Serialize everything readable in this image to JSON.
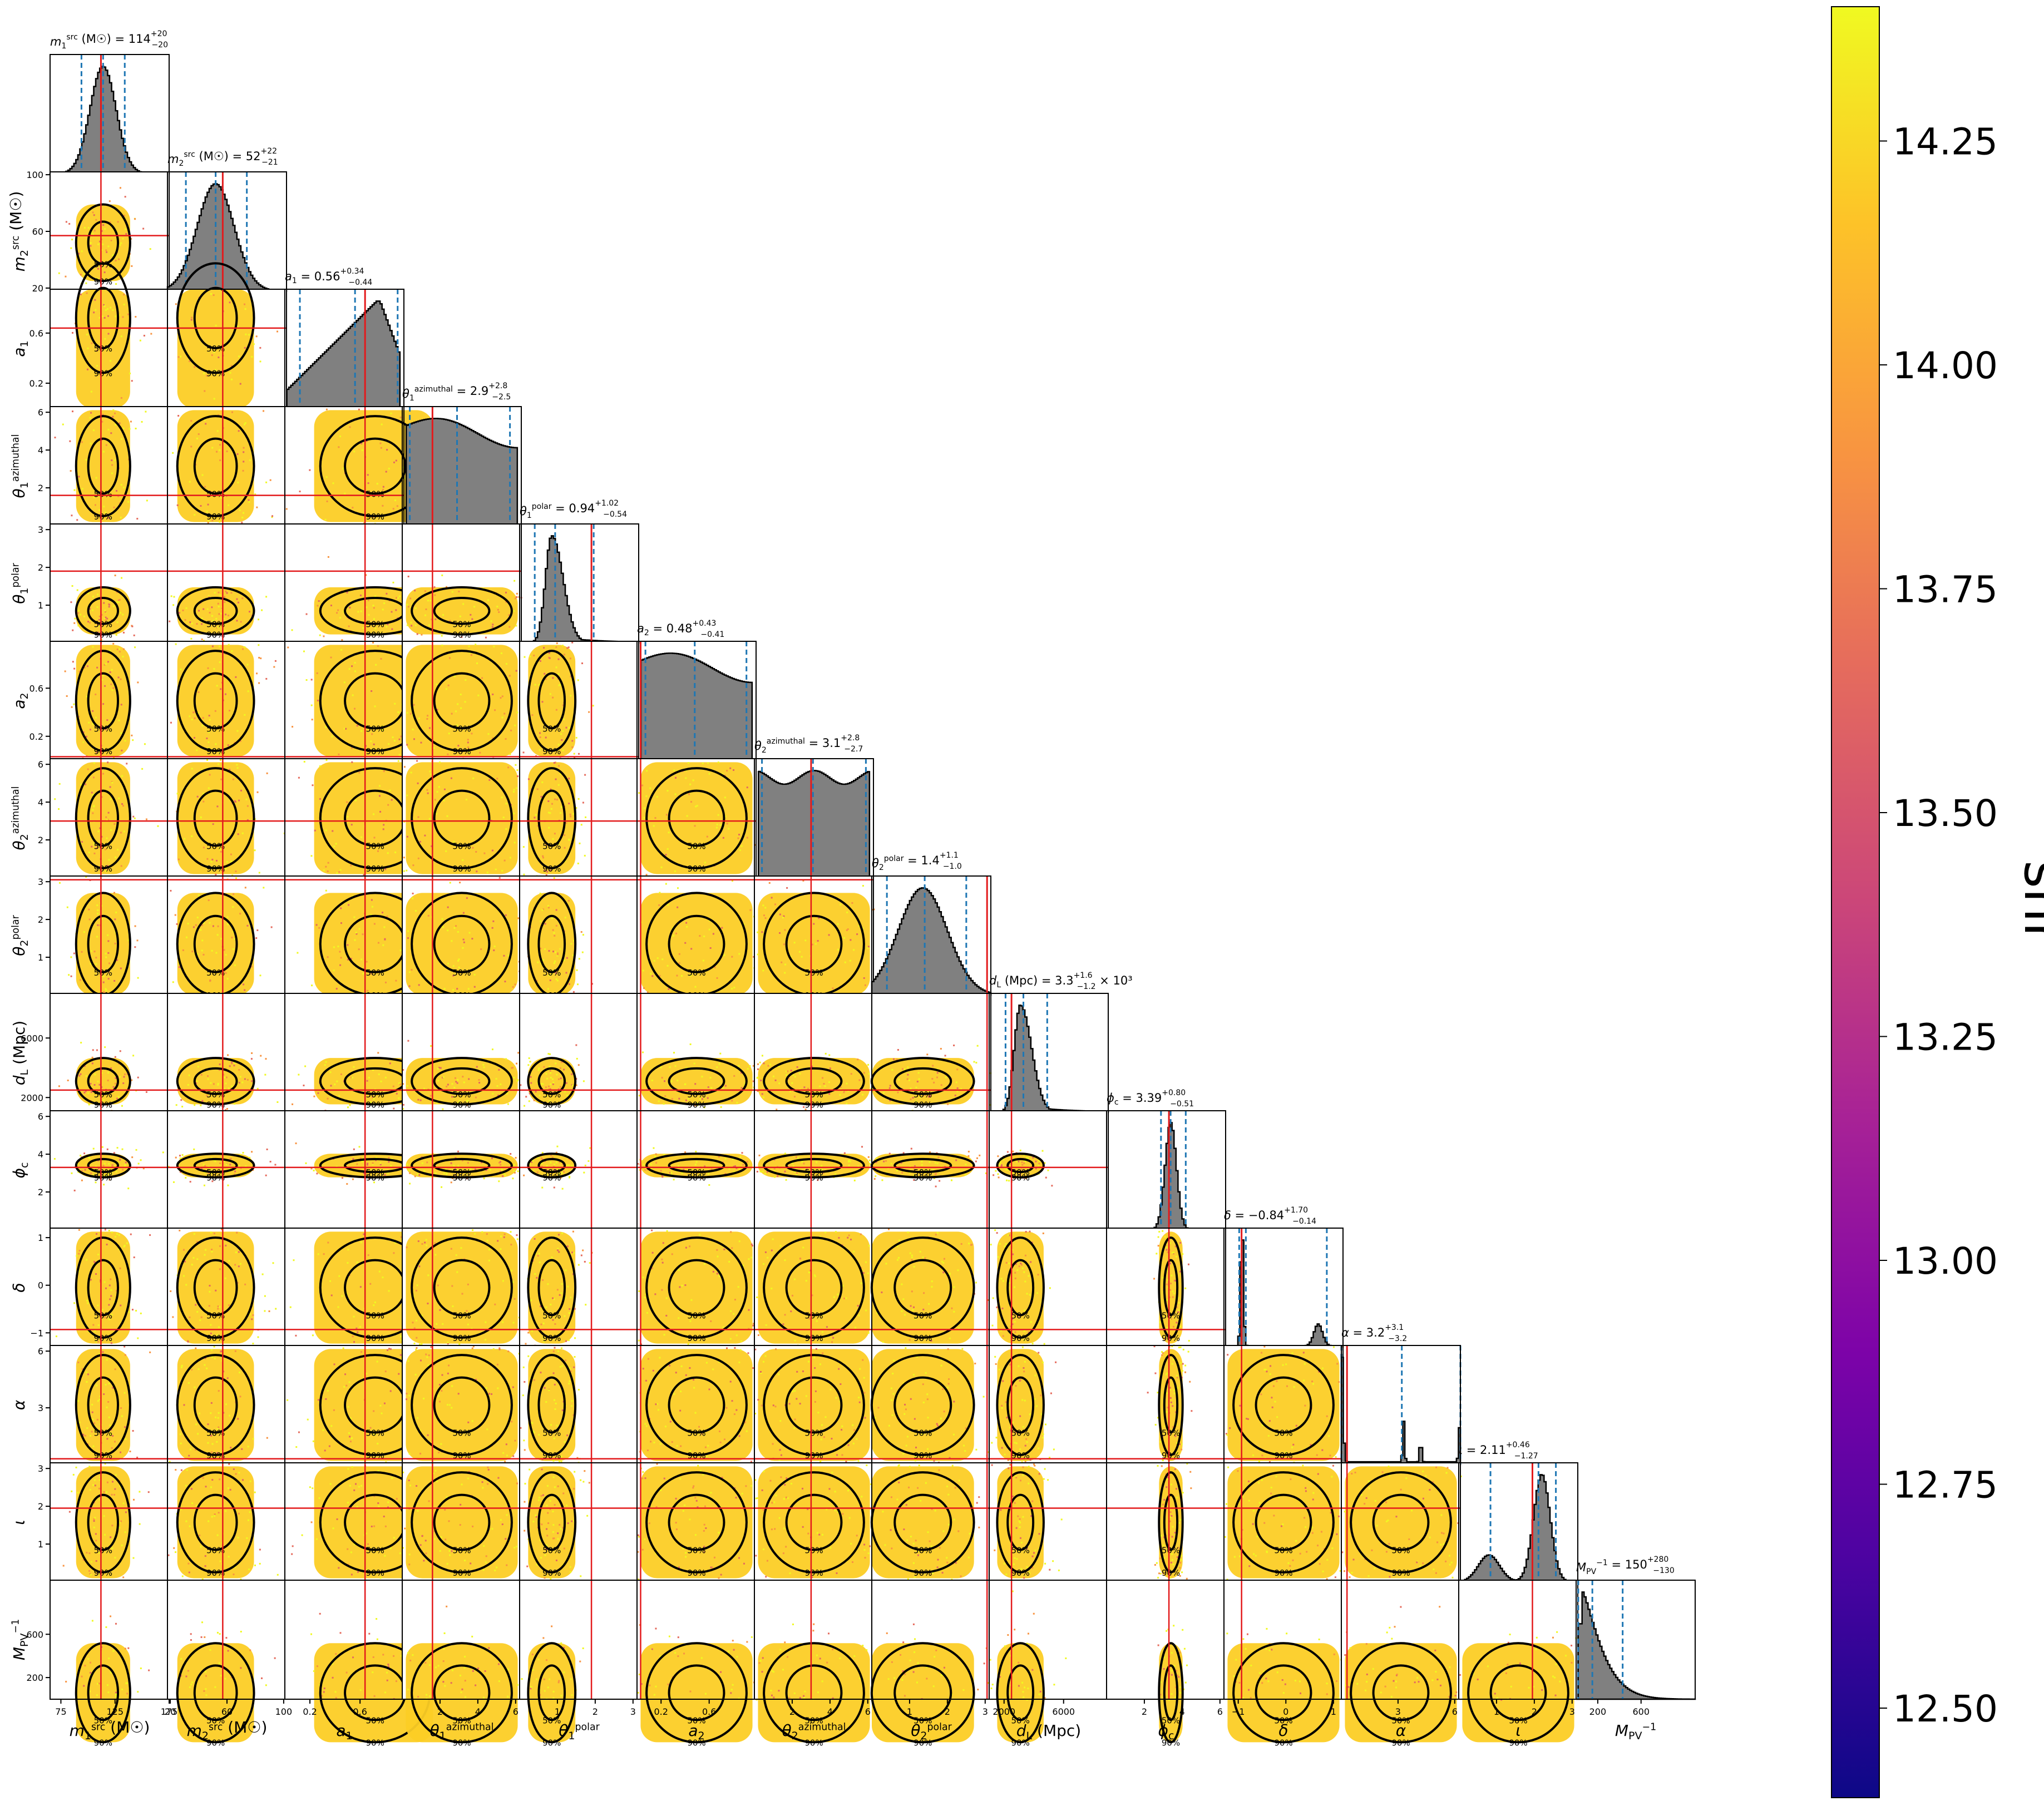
{
  "chart_data": {
    "type": "corner",
    "grid": false,
    "colorbar": {
      "label": "snr",
      "colormap": "plasma",
      "range": [
        12.4,
        14.4
      ],
      "ticks": [
        "12.50",
        "12.75",
        "13.00",
        "13.25",
        "13.50",
        "13.75",
        "14.00",
        "14.25"
      ],
      "tick_values": [
        12.5,
        12.75,
        13.0,
        13.25,
        13.5,
        13.75,
        14.0,
        14.25
      ]
    },
    "contour_levels": [
      "50%",
      "90%"
    ],
    "parameters": [
      {
        "key": "m1",
        "label_base": "m",
        "label_sub": "1",
        "label_sup": "src",
        "label_unit": " (M☉)",
        "title_main": "m",
        "title_sub": "1",
        "title_sup": "src",
        "title_rest": " (M☉) = 114",
        "title_plus": "+20",
        "title_minus": "−20",
        "title_suffix": "",
        "range": [
          65,
          175
        ],
        "ticks": [
          "75",
          "125",
          "175"
        ],
        "tick_values": [
          75,
          125,
          175
        ],
        "median": 114,
        "lower": 94,
        "upper": 134,
        "injection": 112,
        "posterior": {
          "shape": "gauss",
          "mu": 114,
          "sigma": 12
        }
      },
      {
        "key": "m2",
        "label_base": "m",
        "label_sub": "2",
        "label_sup": "src",
        "label_unit": " (M☉)",
        "title_main": "m",
        "title_sub": "2",
        "title_sup": "src",
        "title_rest": " (M☉) = 52",
        "title_plus": "+22",
        "title_minus": "−21",
        "title_suffix": "",
        "range": [
          18,
          102
        ],
        "ticks": [
          "20",
          "60",
          "100"
        ],
        "tick_values": [
          20,
          60,
          100
        ],
        "median": 52,
        "lower": 31,
        "upper": 74,
        "injection": 57,
        "posterior": {
          "shape": "gauss",
          "mu": 52,
          "sigma": 13
        }
      },
      {
        "key": "a1",
        "label_base": "a",
        "label_sub": "1",
        "label_sup": "",
        "label_unit": "",
        "title_main": "a",
        "title_sub": "1",
        "title_sup": "",
        "title_rest": " = 0.56",
        "title_plus": "+0.34",
        "title_minus": "−0.44",
        "title_suffix": "",
        "range": [
          0,
          0.95
        ],
        "ticks": [
          "0.2",
          "0.6"
        ],
        "tick_values": [
          0.2,
          0.6
        ],
        "median": 0.56,
        "lower": 0.12,
        "upper": 0.9,
        "injection": 0.64,
        "posterior": {
          "shape": "ramp",
          "mu": 0.72,
          "sigma": 0.25
        }
      },
      {
        "key": "t1az",
        "label_base": "θ",
        "label_sub": "1",
        "label_sup": "azimuthal",
        "label_unit": "",
        "title_main": "θ",
        "title_sub": "1",
        "title_sup": "azimuthal",
        "title_rest": " = 2.9",
        "title_plus": "+2.8",
        "title_minus": "−2.5",
        "title_suffix": "",
        "range": [
          0,
          6.3
        ],
        "ticks": [
          "2",
          "4",
          "6"
        ],
        "tick_values": [
          2,
          4,
          6
        ],
        "median": 2.9,
        "lower": 0.4,
        "upper": 5.7,
        "injection": 1.6,
        "posterior": {
          "shape": "flat"
        }
      },
      {
        "key": "t1po",
        "label_base": "θ",
        "label_sub": "1",
        "label_sup": "polar",
        "label_unit": "",
        "title_main": "θ",
        "title_sub": "1",
        "title_sup": "polar",
        "title_rest": " = 0.94",
        "title_plus": "+1.02",
        "title_minus": "−0.54",
        "title_suffix": "",
        "range": [
          0,
          3.15
        ],
        "ticks": [
          "1",
          "2",
          "3"
        ],
        "tick_values": [
          1,
          2,
          3
        ],
        "median": 0.94,
        "lower": 0.4,
        "upper": 1.96,
        "injection": 1.9,
        "posterior": {
          "shape": "skew",
          "mu": 0.85,
          "sigma": 0.3
        }
      },
      {
        "key": "a2",
        "label_base": "a",
        "label_sub": "2",
        "label_sup": "",
        "label_unit": "",
        "title_main": "a",
        "title_sub": "2",
        "title_sup": "",
        "title_rest": " = 0.48",
        "title_plus": "+0.43",
        "title_minus": "−0.41",
        "title_suffix": "",
        "range": [
          0,
          0.99
        ],
        "ticks": [
          "0.2",
          "0.6"
        ],
        "tick_values": [
          0.2,
          0.6
        ],
        "median": 0.48,
        "lower": 0.07,
        "upper": 0.91,
        "injection": 0.03,
        "posterior": {
          "shape": "flat"
        }
      },
      {
        "key": "t2az",
        "label_base": "θ",
        "label_sub": "2",
        "label_sup": "azimuthal",
        "label_unit": "",
        "title_main": "θ",
        "title_sub": "2",
        "title_sup": "azimuthal",
        "title_rest": " = 3.1",
        "title_plus": "+2.8",
        "title_minus": "−2.7",
        "title_suffix": "",
        "range": [
          0,
          6.3
        ],
        "ticks": [
          "2",
          "4",
          "6"
        ],
        "tick_values": [
          2,
          4,
          6
        ],
        "median": 3.1,
        "lower": 0.4,
        "upper": 5.9,
        "injection": 3.0,
        "posterior": {
          "shape": "bimodal_flat"
        }
      },
      {
        "key": "t2po",
        "label_base": "θ",
        "label_sub": "2",
        "label_sup": "polar",
        "label_unit": "",
        "title_main": "θ",
        "title_sub": "2",
        "title_sup": "polar",
        "title_rest": " = 1.4",
        "title_plus": "+1.1",
        "title_minus": "−1.0",
        "title_suffix": "",
        "range": [
          0,
          3.15
        ],
        "ticks": [
          "1",
          "2",
          "3"
        ],
        "tick_values": [
          1,
          2,
          3
        ],
        "median": 1.4,
        "lower": 0.4,
        "upper": 2.5,
        "injection": 3.05,
        "posterior": {
          "shape": "gauss",
          "mu": 1.35,
          "sigma": 0.65
        }
      },
      {
        "key": "dl",
        "label_base": "d",
        "label_sub": "L",
        "label_sup": "",
        "label_unit": " (Mpc)",
        "title_main": "d",
        "title_sub": "L",
        "title_sup": "",
        "title_rest": " (Mpc) = 3.3",
        "title_plus": "+1.6",
        "title_minus": "−1.2",
        "title_suffix": " × 10³",
        "range": [
          1000,
          9000
        ],
        "ticks": [
          "2000",
          "6000"
        ],
        "tick_values": [
          2000,
          6000
        ],
        "median": 3300,
        "lower": 2100,
        "upper": 4900,
        "injection": 2500,
        "posterior": {
          "shape": "skew",
          "mu": 3100,
          "sigma": 750
        }
      },
      {
        "key": "phic",
        "label_base": "ϕ",
        "label_sub": "c",
        "label_sup": "",
        "label_unit": "",
        "title_main": "ϕ",
        "title_sub": "c",
        "title_sup": "",
        "title_rest": " = 3.39",
        "title_plus": "+0.80",
        "title_minus": "−0.51",
        "title_suffix": "",
        "range": [
          0,
          6.3
        ],
        "ticks": [
          "2",
          "4",
          "6"
        ],
        "tick_values": [
          2,
          4,
          6
        ],
        "median": 3.39,
        "lower": 2.88,
        "upper": 4.19,
        "injection": 3.3,
        "posterior": {
          "shape": "gauss",
          "mu": 3.4,
          "sigma": 0.3
        }
      },
      {
        "key": "delta",
        "label_base": "δ",
        "label_sub": "",
        "label_sup": "",
        "label_unit": "",
        "title_main": "δ",
        "title_sub": "",
        "title_sup": "",
        "title_rest": " = −0.84",
        "title_plus": "+1.70",
        "title_minus": "−0.14",
        "title_suffix": "",
        "range": [
          -1.3,
          1.2
        ],
        "ticks": [
          "−1",
          "0",
          "1"
        ],
        "tick_values": [
          -1,
          0,
          1
        ],
        "median": -0.84,
        "lower": -0.98,
        "upper": 0.86,
        "injection": -0.93,
        "posterior": {
          "shape": "delta_bimodal"
        }
      },
      {
        "key": "alpha",
        "label_base": "α",
        "label_sub": "",
        "label_sup": "",
        "label_unit": "",
        "title_main": "α",
        "title_sub": "",
        "title_sup": "",
        "title_rest": " = 3.2",
        "title_plus": "+3.1",
        "title_minus": "−3.2",
        "title_suffix": "",
        "range": [
          0,
          6.3
        ],
        "ticks": [
          "3",
          "6"
        ],
        "tick_values": [
          3,
          6
        ],
        "median": 3.2,
        "lower": 0.0,
        "upper": 6.3,
        "injection": 0.3,
        "posterior": {
          "shape": "alpha_spikes"
        }
      },
      {
        "key": "iota",
        "label_base": "ι",
        "label_sub": "",
        "label_sup": "",
        "label_unit": "",
        "title_main": "ι",
        "title_sub": "",
        "title_sup": "",
        "title_rest": " = 2.11",
        "title_plus": "+0.46",
        "title_minus": "−1.27",
        "title_suffix": "",
        "range": [
          0,
          3.15
        ],
        "ticks": [
          "1",
          "2",
          "3"
        ],
        "tick_values": [
          1,
          2,
          3
        ],
        "median": 2.11,
        "lower": 0.84,
        "upper": 2.57,
        "injection": 1.95,
        "posterior": {
          "shape": "iota_bimodal"
        }
      },
      {
        "key": "mpv",
        "label_base": "M",
        "label_sub": "PV",
        "label_sup": "−1",
        "label_unit": "",
        "title_main": "M",
        "title_sub": "PV",
        "title_sup": "−1",
        "title_rest": " = 150",
        "title_plus": "+280",
        "title_minus": "−130",
        "title_suffix": "",
        "range": [
          0,
          1100
        ],
        "ticks": [
          "200",
          "600"
        ],
        "tick_values": [
          200,
          600
        ],
        "median": 150,
        "lower": 20,
        "upper": 430,
        "injection": null,
        "posterior": {
          "shape": "decay",
          "mu": 60,
          "sigma": 220
        }
      }
    ]
  }
}
